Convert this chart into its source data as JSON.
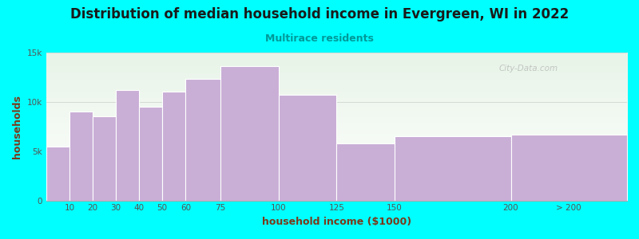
{
  "title": "Distribution of median household income in Evergreen, WI in 2022",
  "subtitle": "Multirace residents",
  "xlabel": "household income ($1000)",
  "ylabel": "households",
  "background_color": "#00FFFF",
  "plot_bg_gradient_top": "#e8f4e8",
  "plot_bg_gradient_bottom": "#ffffff",
  "bar_color": "#c9aed6",
  "bar_edge_color": "#ffffff",
  "title_color": "#1a1a1a",
  "subtitle_color": "#009999",
  "axis_label_color": "#7a3a1a",
  "tick_label_color": "#555555",
  "categories": [
    "10",
    "20",
    "30",
    "40",
    "50",
    "60",
    "75",
    "100",
    "125",
    "150",
    "200",
    "> 200"
  ],
  "left_edges": [
    0,
    10,
    20,
    30,
    40,
    50,
    60,
    75,
    100,
    125,
    150,
    200
  ],
  "right_edges": [
    10,
    20,
    30,
    40,
    50,
    60,
    75,
    100,
    125,
    150,
    200,
    250
  ],
  "values": [
    5500,
    9000,
    8500,
    11200,
    9500,
    11000,
    12300,
    13600,
    10700,
    5800,
    6500,
    6700
  ],
  "ylim": [
    0,
    15000
  ],
  "yticks": [
    0,
    5000,
    10000,
    15000
  ],
  "ytick_labels": [
    "0",
    "5k",
    "10k",
    "15k"
  ],
  "xlim": [
    0,
    250
  ],
  "xtick_positions": [
    10,
    20,
    30,
    40,
    50,
    60,
    75,
    100,
    125,
    150,
    200,
    225
  ],
  "xtick_labels": [
    "10",
    "20",
    "30",
    "40",
    "50",
    "60",
    "75",
    "100",
    "125",
    "150",
    "200",
    "> 200"
  ],
  "watermark": "City-Data.com",
  "title_fontsize": 12,
  "subtitle_fontsize": 9,
  "axis_label_fontsize": 9,
  "tick_fontsize": 7.5
}
